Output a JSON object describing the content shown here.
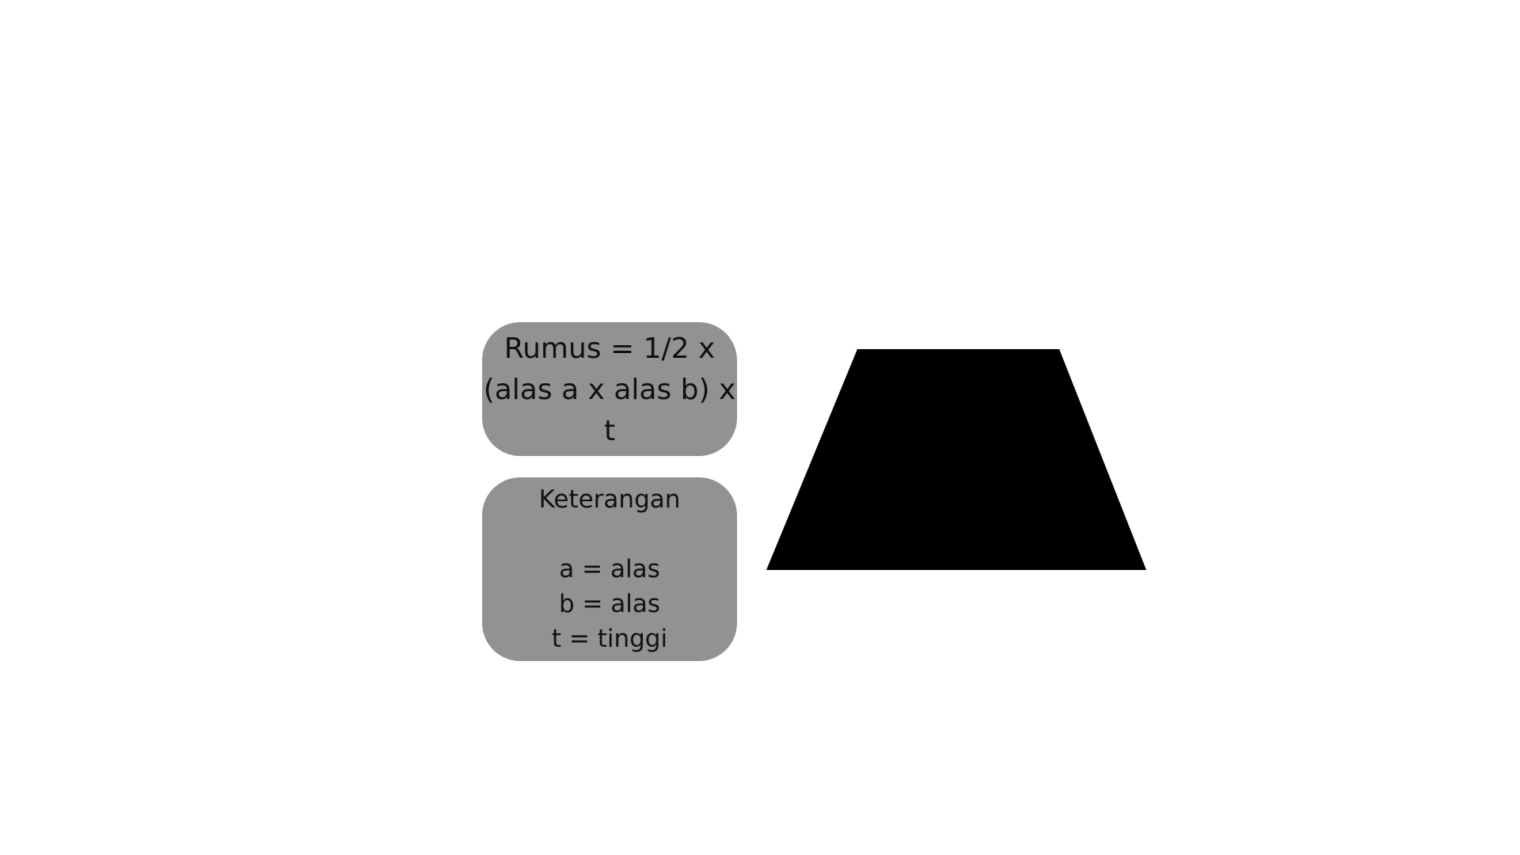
{
  "formula": {
    "lines": [
      "Rumus = 1/2 x",
      "(alas a x alas b) x",
      "t"
    ]
  },
  "legend": {
    "title": "Keterangan",
    "items": [
      "a = alas",
      "b = alas",
      "t = tinggi"
    ]
  },
  "colors": {
    "box_fill": "#929292",
    "shape_fill": "#000000",
    "background": "#ffffff"
  },
  "shape": "trapezoid"
}
